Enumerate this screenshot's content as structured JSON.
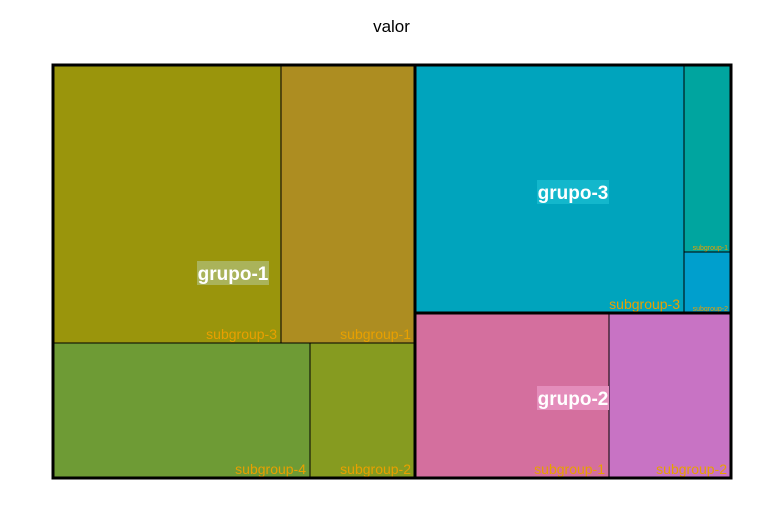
{
  "chart_data": {
    "type": "treemap",
    "title": "valor",
    "groups": [
      {
        "name": "grupo-1",
        "color": "#8f9a1f",
        "label_bg": "#aab35a",
        "subgroups": [
          {
            "name": "subgroup-3",
            "value": 19,
            "color": "#9a950c"
          },
          {
            "name": "subgroup-1",
            "value": 11,
            "color": "#ad8d21"
          },
          {
            "name": "subgroup-4",
            "value": 14,
            "color": "#6e9b35"
          },
          {
            "name": "subgroup-2",
            "value": 6,
            "color": "#869b20"
          }
        ]
      },
      {
        "name": "grupo-3",
        "color": "#00a6b8",
        "label_bg": "#13b7cc",
        "subgroups": [
          {
            "name": "subgroup-3",
            "value": 30,
            "color": "#00a4bd"
          },
          {
            "name": "subgroup-1",
            "value": 4,
            "color": "#00a59f"
          },
          {
            "name": "subgroup-2",
            "value": 1,
            "color": "#009fcd"
          }
        ]
      },
      {
        "name": "grupo-2",
        "color": "#d46fa0",
        "label_bg": "#e48dbb",
        "subgroups": [
          {
            "name": "subgroup-1",
            "value": 14,
            "color": "#d46f9e"
          },
          {
            "name": "subgroup-2",
            "value": 9,
            "color": "#c873c4"
          }
        ]
      }
    ],
    "subgroup_label_color": "#e8a000"
  }
}
